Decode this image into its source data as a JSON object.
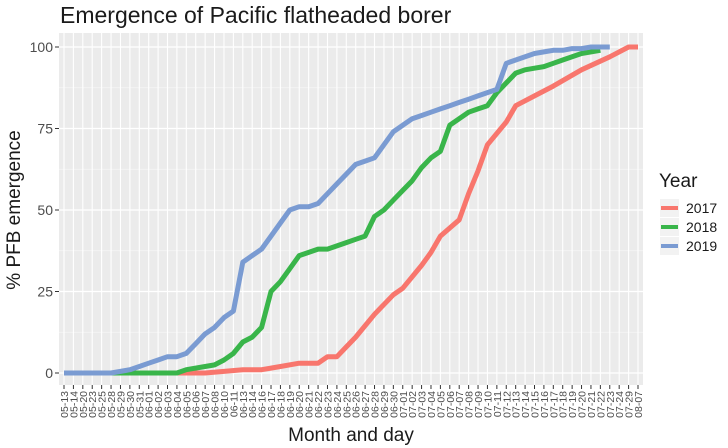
{
  "chart_data": {
    "type": "line",
    "title": "Emergence of Pacific flatheaded borer",
    "xlabel": "Month and day",
    "ylabel": "% PFB emergence",
    "ylim": [
      0,
      100
    ],
    "yticks": [
      0,
      25,
      50,
      75,
      100
    ],
    "grid": true,
    "legend": {
      "title": "Year",
      "position": "right"
    },
    "categories": [
      "05-13",
      "05-14",
      "05-20",
      "05-23",
      "05-25",
      "05-28",
      "05-29",
      "05-30",
      "05-31",
      "06-01",
      "06-02",
      "06-03",
      "06-04",
      "06-05",
      "06-06",
      "06-07",
      "06-08",
      "06-10",
      "06-11",
      "06-13",
      "06-14",
      "06-16",
      "06-17",
      "06-18",
      "06-19",
      "06-20",
      "06-21",
      "06-22",
      "06-23",
      "06-24",
      "06-25",
      "06-26",
      "06-27",
      "06-28",
      "06-29",
      "06-30",
      "07-01",
      "07-02",
      "07-03",
      "07-04",
      "07-05",
      "07-06",
      "07-07",
      "07-08",
      "07-09",
      "07-10",
      "07-11",
      "07-12",
      "07-13",
      "07-14",
      "07-15",
      "07-16",
      "07-17",
      "07-18",
      "07-19",
      "07-20",
      "07-21",
      "07-22",
      "07-23",
      "07-24",
      "07-29",
      "08-07"
    ],
    "series": [
      {
        "name": "2017",
        "color": "#F8766D",
        "x": [
          0,
          5,
          10,
          15,
          17,
          19,
          20,
          21,
          22,
          23,
          25,
          26,
          27,
          28,
          29,
          30,
          31,
          33,
          35,
          36,
          38,
          39,
          40,
          42,
          43,
          44,
          45,
          47,
          48,
          50,
          52,
          55,
          58,
          60,
          61
        ],
        "values": [
          0,
          0,
          0,
          0,
          0.5,
          1,
          1,
          1,
          1.5,
          2,
          3,
          3,
          3,
          5,
          5,
          8,
          11,
          18,
          24,
          26,
          33,
          37,
          42,
          47,
          55,
          62,
          70,
          77,
          82,
          85,
          88,
          93,
          97,
          100,
          100
        ]
      },
      {
        "name": "2018",
        "color": "#39B54A",
        "x": [
          5,
          10,
          11,
          12,
          13,
          15,
          16,
          17,
          18,
          19,
          20,
          21,
          22,
          23,
          24,
          25,
          26,
          27,
          28,
          29,
          30,
          31,
          32,
          33,
          34,
          35,
          36,
          37,
          38,
          39,
          40,
          41,
          42,
          43,
          44,
          45,
          46,
          47,
          48,
          49,
          50,
          51,
          52,
          53,
          54,
          55,
          56,
          57
        ],
        "values": [
          0,
          0,
          0,
          0,
          1,
          2,
          2.5,
          4,
          6,
          9.5,
          11,
          14,
          25,
          28,
          32,
          36,
          37,
          38,
          38,
          39,
          40,
          41,
          42,
          48,
          50,
          53,
          56,
          59,
          63,
          66,
          68,
          76,
          78,
          80,
          81,
          82,
          86,
          89,
          92,
          93,
          93.5,
          94,
          95,
          96,
          97,
          98,
          98.5,
          99
        ]
      },
      {
        "name": "2019",
        "color": "#7A9BD2",
        "x": [
          0,
          5,
          6,
          7,
          8,
          9,
          10,
          11,
          12,
          13,
          14,
          15,
          16,
          17,
          18,
          19,
          20,
          21,
          22,
          23,
          24,
          25,
          26,
          27,
          28,
          29,
          30,
          31,
          32,
          33,
          34,
          35,
          36,
          37,
          38,
          39,
          40,
          41,
          42,
          43,
          44,
          45,
          46,
          47,
          48,
          49,
          50,
          51,
          52,
          53,
          54,
          55,
          56,
          57,
          58
        ],
        "values": [
          0,
          0,
          0.5,
          1,
          2,
          3,
          4,
          5,
          5,
          6,
          9,
          12,
          14,
          17,
          19,
          34,
          36,
          38,
          42,
          46,
          50,
          51,
          51,
          52,
          55,
          58,
          61,
          64,
          65,
          66,
          70,
          74,
          76,
          78,
          79,
          80,
          81,
          82,
          83,
          84,
          85,
          86,
          87,
          95,
          96,
          97,
          98,
          98.5,
          99,
          99,
          99.5,
          99.5,
          100,
          100,
          100
        ]
      }
    ]
  }
}
